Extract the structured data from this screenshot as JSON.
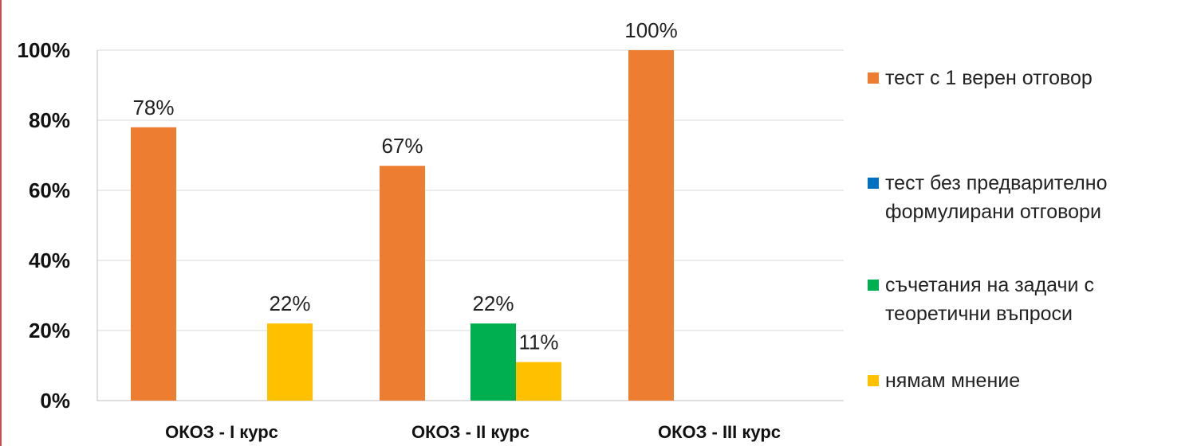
{
  "chart_data": {
    "type": "bar",
    "categories": [
      "ОКОЗ - I курс",
      "ОКОЗ - II курс",
      "ОКОЗ - III курс"
    ],
    "series": [
      {
        "name": "тест с 1 верен отговор",
        "color": "#ed7d31",
        "values": [
          78,
          67,
          100
        ],
        "labels": [
          "78%",
          "67%",
          "100%"
        ]
      },
      {
        "name": "тест без предварително формулирани отговори",
        "color": "#0070c0",
        "values": [
          0,
          0,
          0
        ],
        "labels": [
          "",
          "",
          ""
        ]
      },
      {
        "name": "съчетания на задачи с теоретични въпроси",
        "color": "#00b050",
        "values": [
          0,
          22,
          0
        ],
        "labels": [
          "",
          "22%",
          ""
        ]
      },
      {
        "name": "нямам мнение",
        "color": "#ffc000",
        "values": [
          22,
          11,
          0
        ],
        "labels": [
          "22%",
          "11%",
          ""
        ]
      }
    ],
    "yticks": [
      "0%",
      "20%",
      "40%",
      "60%",
      "80%",
      "100%"
    ],
    "ylim": [
      0,
      100
    ],
    "grid": true,
    "legend_position": "right"
  }
}
